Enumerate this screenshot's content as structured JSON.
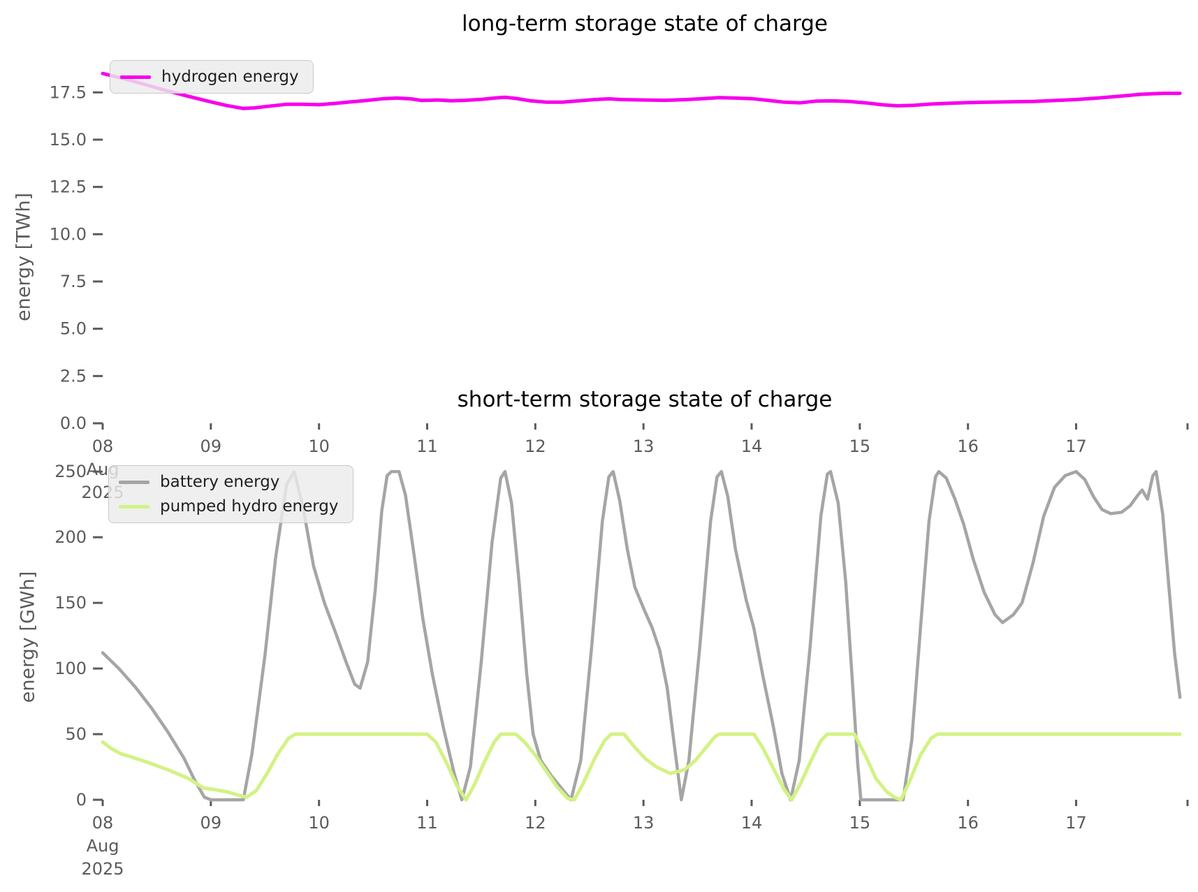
{
  "chart_data": [
    {
      "type": "line",
      "title": "long-term storage state of charge",
      "ylabel": "energy [TWh]",
      "xlabel": "",
      "xlim": [
        8.0,
        18.03
      ],
      "ylim": [
        0,
        19.8
      ],
      "grid": false,
      "legend_position": "upper-left",
      "tick_color": "#5b5b5b",
      "yticks": {
        "values": [
          0.0,
          2.5,
          5.0,
          7.5,
          10.0,
          12.5,
          15.0,
          17.5
        ],
        "labels": [
          "0.0",
          "2.5",
          "5.0",
          "7.5",
          "10.0",
          "12.5",
          "15.0",
          "17.5"
        ]
      },
      "xticks": {
        "values": [
          8,
          9,
          10,
          11,
          12,
          13,
          14,
          15,
          16,
          17
        ],
        "labels": [
          "08",
          "09",
          "10",
          "11",
          "12",
          "13",
          "14",
          "15",
          "16",
          "17"
        ],
        "edge_value": 18.03,
        "first_sublabels": [
          "Aug",
          "2025"
        ]
      },
      "series": [
        {
          "name": "hydrogen energy",
          "color": "#f700ec",
          "width": 5,
          "points": [
            [
              8.0,
              18.5
            ],
            [
              8.2,
              18.22
            ],
            [
              8.4,
              17.9
            ],
            [
              8.6,
              17.58
            ],
            [
              8.8,
              17.28
            ],
            [
              9.0,
              17.0
            ],
            [
              9.15,
              16.8
            ],
            [
              9.3,
              16.65
            ],
            [
              9.4,
              16.68
            ],
            [
              9.55,
              16.78
            ],
            [
              9.7,
              16.87
            ],
            [
              9.85,
              16.87
            ],
            [
              10.0,
              16.85
            ],
            [
              10.15,
              16.92
            ],
            [
              10.3,
              17.0
            ],
            [
              10.45,
              17.08
            ],
            [
              10.6,
              17.17
            ],
            [
              10.72,
              17.2
            ],
            [
              10.85,
              17.16
            ],
            [
              10.95,
              17.07
            ],
            [
              11.1,
              17.1
            ],
            [
              11.22,
              17.06
            ],
            [
              11.35,
              17.08
            ],
            [
              11.5,
              17.13
            ],
            [
              11.62,
              17.2
            ],
            [
              11.72,
              17.24
            ],
            [
              11.82,
              17.18
            ],
            [
              11.95,
              17.06
            ],
            [
              12.1,
              16.98
            ],
            [
              12.25,
              16.98
            ],
            [
              12.4,
              17.05
            ],
            [
              12.55,
              17.12
            ],
            [
              12.68,
              17.16
            ],
            [
              12.8,
              17.12
            ],
            [
              13.0,
              17.1
            ],
            [
              13.2,
              17.08
            ],
            [
              13.4,
              17.12
            ],
            [
              13.55,
              17.17
            ],
            [
              13.7,
              17.22
            ],
            [
              13.85,
              17.2
            ],
            [
              14.0,
              17.17
            ],
            [
              14.15,
              17.08
            ],
            [
              14.3,
              16.98
            ],
            [
              14.45,
              16.95
            ],
            [
              14.6,
              17.04
            ],
            [
              14.75,
              17.05
            ],
            [
              14.9,
              17.02
            ],
            [
              15.05,
              16.95
            ],
            [
              15.2,
              16.85
            ],
            [
              15.35,
              16.79
            ],
            [
              15.5,
              16.82
            ],
            [
              15.65,
              16.88
            ],
            [
              15.8,
              16.92
            ],
            [
              16.0,
              16.96
            ],
            [
              16.2,
              16.98
            ],
            [
              16.4,
              17.0
            ],
            [
              16.6,
              17.02
            ],
            [
              16.8,
              17.07
            ],
            [
              17.0,
              17.12
            ],
            [
              17.2,
              17.2
            ],
            [
              17.4,
              17.3
            ],
            [
              17.6,
              17.4
            ],
            [
              17.8,
              17.45
            ],
            [
              17.96,
              17.45
            ]
          ]
        }
      ]
    },
    {
      "type": "line",
      "title": "short-term storage state of charge",
      "ylabel": "energy [GWh]",
      "xlabel": "",
      "xlim": [
        8.0,
        18.03
      ],
      "ylim": [
        0,
        282
      ],
      "grid": false,
      "legend_position": "upper-left",
      "tick_color": "#5b5b5b",
      "yticks": {
        "values": [
          0,
          50,
          100,
          150,
          200,
          250
        ],
        "labels": [
          "0",
          "50",
          "100",
          "150",
          "200",
          "250"
        ]
      },
      "xticks": {
        "values": [
          8,
          9,
          10,
          11,
          12,
          13,
          14,
          15,
          16,
          17
        ],
        "labels": [
          "08",
          "09",
          "10",
          "11",
          "12",
          "13",
          "14",
          "15",
          "16",
          "17"
        ],
        "edge_value": 18.03,
        "first_sublabels": [
          "Aug",
          "2025"
        ]
      },
      "series": [
        {
          "name": "battery energy",
          "color": "#a5a5a5",
          "width": 4.5,
          "points": [
            [
              8.0,
              112
            ],
            [
              8.15,
              100
            ],
            [
              8.3,
              86
            ],
            [
              8.45,
              70
            ],
            [
              8.6,
              52
            ],
            [
              8.75,
              32
            ],
            [
              8.85,
              15
            ],
            [
              8.94,
              2
            ],
            [
              9.0,
              0
            ],
            [
              9.3,
              0
            ],
            [
              9.38,
              35
            ],
            [
              9.5,
              110
            ],
            [
              9.6,
              185
            ],
            [
              9.7,
              240
            ],
            [
              9.77,
              250
            ],
            [
              9.85,
              224
            ],
            [
              9.95,
              178
            ],
            [
              10.05,
              150
            ],
            [
              10.15,
              128
            ],
            [
              10.25,
              105
            ],
            [
              10.33,
              88
            ],
            [
              10.38,
              85
            ],
            [
              10.45,
              105
            ],
            [
              10.52,
              160
            ],
            [
              10.58,
              220
            ],
            [
              10.63,
              247
            ],
            [
              10.67,
              250
            ],
            [
              10.74,
              250
            ],
            [
              10.8,
              232
            ],
            [
              10.88,
              186
            ],
            [
              10.96,
              138
            ],
            [
              11.05,
              95
            ],
            [
              11.15,
              55
            ],
            [
              11.25,
              20
            ],
            [
              11.32,
              0
            ],
            [
              11.4,
              25
            ],
            [
              11.5,
              105
            ],
            [
              11.6,
              196
            ],
            [
              11.68,
              245
            ],
            [
              11.72,
              250
            ],
            [
              11.78,
              226
            ],
            [
              11.85,
              166
            ],
            [
              11.92,
              96
            ],
            [
              11.98,
              50
            ],
            [
              12.05,
              30
            ],
            [
              12.15,
              18
            ],
            [
              12.25,
              8
            ],
            [
              12.33,
              0
            ],
            [
              12.42,
              30
            ],
            [
              12.52,
              116
            ],
            [
              12.62,
              212
            ],
            [
              12.68,
              246
            ],
            [
              12.72,
              250
            ],
            [
              12.78,
              228
            ],
            [
              12.85,
              191
            ],
            [
              12.92,
              162
            ],
            [
              13.0,
              146
            ],
            [
              13.08,
              131
            ],
            [
              13.15,
              114
            ],
            [
              13.22,
              85
            ],
            [
              13.28,
              45
            ],
            [
              13.35,
              0
            ],
            [
              13.42,
              30
            ],
            [
              13.52,
              116
            ],
            [
              13.62,
              212
            ],
            [
              13.68,
              246
            ],
            [
              13.72,
              250
            ],
            [
              13.78,
              231
            ],
            [
              13.85,
              191
            ],
            [
              13.95,
              152
            ],
            [
              14.02,
              131
            ],
            [
              14.1,
              96
            ],
            [
              14.2,
              56
            ],
            [
              14.28,
              20
            ],
            [
              14.36,
              0
            ],
            [
              14.44,
              30
            ],
            [
              14.54,
              116
            ],
            [
              14.64,
              216
            ],
            [
              14.7,
              248
            ],
            [
              14.73,
              250
            ],
            [
              14.8,
              226
            ],
            [
              14.87,
              166
            ],
            [
              14.93,
              92
            ],
            [
              14.98,
              28
            ],
            [
              15.01,
              0
            ],
            [
              15.4,
              0
            ],
            [
              15.48,
              45
            ],
            [
              15.56,
              130
            ],
            [
              15.64,
              212
            ],
            [
              15.7,
              246
            ],
            [
              15.73,
              250
            ],
            [
              15.8,
              245
            ],
            [
              15.88,
              229
            ],
            [
              15.96,
              210
            ],
            [
              16.05,
              183
            ],
            [
              16.15,
              158
            ],
            [
              16.25,
              141
            ],
            [
              16.32,
              135
            ],
            [
              16.42,
              141
            ],
            [
              16.5,
              150
            ],
            [
              16.6,
              180
            ],
            [
              16.7,
              216
            ],
            [
              16.8,
              238
            ],
            [
              16.9,
              247
            ],
            [
              17.0,
              250
            ],
            [
              17.08,
              244
            ],
            [
              17.16,
              231
            ],
            [
              17.24,
              221
            ],
            [
              17.32,
              218
            ],
            [
              17.42,
              219
            ],
            [
              17.5,
              224
            ],
            [
              17.57,
              232
            ],
            [
              17.61,
              236
            ],
            [
              17.66,
              229
            ],
            [
              17.71,
              247
            ],
            [
              17.74,
              250
            ],
            [
              17.8,
              218
            ],
            [
              17.86,
              160
            ],
            [
              17.91,
              112
            ],
            [
              17.96,
              78
            ]
          ]
        },
        {
          "name": "pumped hydro energy",
          "color": "#d3f284",
          "width": 5,
          "points": [
            [
              8.0,
              44
            ],
            [
              8.08,
              39
            ],
            [
              8.17,
              35
            ],
            [
              8.25,
              33
            ],
            [
              8.4,
              29
            ],
            [
              8.6,
              23
            ],
            [
              8.8,
              16
            ],
            [
              8.93,
              9
            ],
            [
              9.02,
              8
            ],
            [
              9.15,
              6
            ],
            [
              9.28,
              3
            ],
            [
              9.33,
              2
            ],
            [
              9.42,
              7
            ],
            [
              9.52,
              20
            ],
            [
              9.62,
              35
            ],
            [
              9.72,
              47
            ],
            [
              9.78,
              50
            ],
            [
              11.0,
              50
            ],
            [
              11.08,
              44
            ],
            [
              11.18,
              28
            ],
            [
              11.28,
              10
            ],
            [
              11.36,
              0
            ],
            [
              11.44,
              12
            ],
            [
              11.53,
              29
            ],
            [
              11.62,
              44
            ],
            [
              11.68,
              50
            ],
            [
              11.82,
              50
            ],
            [
              11.9,
              44
            ],
            [
              12.0,
              34
            ],
            [
              12.1,
              22
            ],
            [
              12.2,
              10
            ],
            [
              12.3,
              1
            ],
            [
              12.36,
              0
            ],
            [
              12.44,
              12
            ],
            [
              12.54,
              30
            ],
            [
              12.64,
              45
            ],
            [
              12.7,
              50
            ],
            [
              12.82,
              50
            ],
            [
              12.92,
              40
            ],
            [
              13.02,
              31
            ],
            [
              13.12,
              25
            ],
            [
              13.25,
              20
            ],
            [
              13.38,
              23
            ],
            [
              13.48,
              30
            ],
            [
              13.58,
              40
            ],
            [
              13.66,
              48
            ],
            [
              13.7,
              50
            ],
            [
              14.02,
              50
            ],
            [
              14.1,
              40
            ],
            [
              14.2,
              24
            ],
            [
              14.3,
              8
            ],
            [
              14.37,
              0
            ],
            [
              14.45,
              12
            ],
            [
              14.55,
              30
            ],
            [
              14.64,
              45
            ],
            [
              14.7,
              50
            ],
            [
              14.95,
              50
            ],
            [
              15.05,
              34
            ],
            [
              15.15,
              16
            ],
            [
              15.25,
              6
            ],
            [
              15.32,
              2
            ],
            [
              15.38,
              0
            ],
            [
              15.46,
              14
            ],
            [
              15.56,
              34
            ],
            [
              15.66,
              47
            ],
            [
              15.72,
              50
            ],
            [
              17.96,
              50
            ]
          ]
        }
      ]
    }
  ]
}
